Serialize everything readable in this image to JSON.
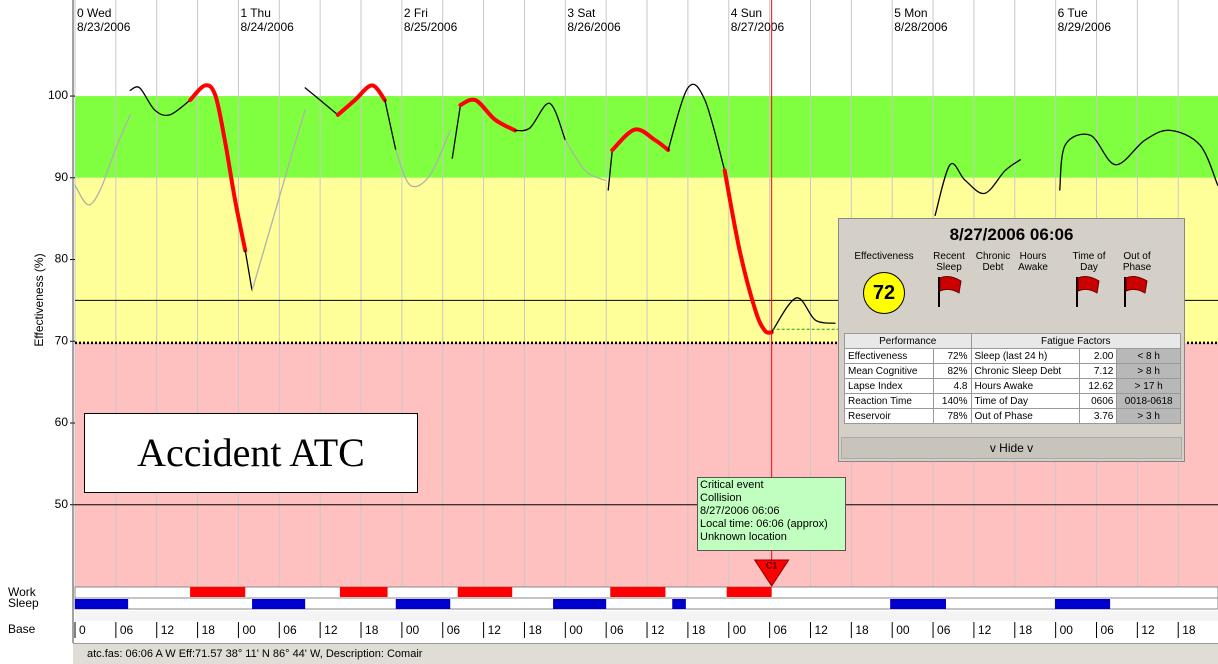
{
  "y_axis_label": "Effectiveness (%)",
  "chart_data": {
    "type": "line",
    "ylim": [
      40,
      111.75
    ],
    "yticks": [
      50,
      60,
      70,
      80,
      90,
      100
    ],
    "xlim": [
      0,
      168
    ],
    "xticks": [
      0,
      {
        "value": 6,
        "label": "06"
      },
      12,
      18,
      {
        "value": 24,
        "label": "00"
      },
      {
        "value": 30,
        "label": "06"
      },
      {
        "value": 36,
        "label": "12"
      },
      {
        "value": 42,
        "label": "18"
      },
      {
        "value": 48,
        "label": "00"
      },
      {
        "value": 54,
        "label": "06"
      },
      {
        "value": 60,
        "label": "12"
      },
      {
        "value": 66,
        "label": "18"
      },
      {
        "value": 72,
        "label": "00"
      },
      {
        "value": 78,
        "label": "06"
      },
      {
        "value": 84,
        "label": "12"
      },
      {
        "value": 90,
        "label": "18"
      },
      {
        "value": 96,
        "label": "00"
      },
      {
        "value": 102,
        "label": "06"
      },
      {
        "value": 108,
        "label": "12"
      },
      {
        "value": 114,
        "label": "18"
      },
      {
        "value": 120,
        "label": "00"
      },
      {
        "value": 126,
        "label": "06"
      },
      {
        "value": 132,
        "label": "12"
      },
      {
        "value": 138,
        "label": "18"
      },
      {
        "value": 144,
        "label": "00"
      },
      {
        "value": 150,
        "label": "06"
      },
      {
        "value": 156,
        "label": "12"
      },
      {
        "value": 162,
        "label": "18"
      }
    ],
    "days": [
      {
        "label": "0 Wed",
        "date": "8/23/2006"
      },
      {
        "label": "1 Thu",
        "date": "8/24/2006"
      },
      {
        "label": "2 Fri",
        "date": "8/25/2006"
      },
      {
        "label": "3 Sat",
        "date": "8/26/2006"
      },
      {
        "label": "4 Sun",
        "date": "8/27/2006"
      },
      {
        "label": "5 Mon",
        "date": "8/28/2006"
      },
      {
        "label": "6 Tue",
        "date": "8/29/2006"
      }
    ],
    "bands": [
      {
        "from": 90,
        "to": 100,
        "color": "#80ff40"
      },
      {
        "from": 69.8,
        "to": 90,
        "color": "#ffff99"
      },
      {
        "from": 40,
        "to": 69.8,
        "color": "#ffc0c0"
      }
    ],
    "reference_lines": [
      75,
      50
    ],
    "criterion": 69.8,
    "series": [
      {
        "color": "#b0b0b0",
        "x": [
          0,
          1.9,
          3.7,
          5.9,
          8.1
        ],
        "values": [
          89.1,
          86.7,
          88.5,
          93.4,
          97.7
        ]
      },
      {
        "color": "#000000",
        "x": [
          8.1,
          9.5,
          11.7,
          13.9,
          16.9
        ],
        "values": [
          100.7,
          101,
          98.3,
          97.7,
          99.5
        ]
      },
      {
        "color": "#ff0000",
        "x": [
          16.9,
          19.1,
          20.6,
          22,
          23.5,
          25
        ],
        "values": [
          99.5,
          101.3,
          100.1,
          94.6,
          87.3,
          81.1
        ]
      },
      {
        "color": "#000000",
        "x": [
          25,
          26
        ],
        "values": [
          81.1,
          76.2
        ]
      },
      {
        "color": "#b0b0b0",
        "x": [
          26,
          28.6,
          31.6,
          33.8
        ],
        "values": [
          76.2,
          83.6,
          92.2,
          98.3
        ]
      },
      {
        "color": "#000000",
        "x": [
          33.8,
          36,
          38.6
        ],
        "values": [
          101,
          99.5,
          97.7
        ]
      },
      {
        "color": "#ff0000",
        "x": [
          38.6,
          41.1,
          43.6,
          45.5
        ],
        "values": [
          97.7,
          99.5,
          101.3,
          99.5
        ]
      },
      {
        "color": "#000000",
        "x": [
          45.5,
          47.1
        ],
        "values": [
          99.5,
          93.4
        ]
      },
      {
        "color": "#b0b0b0",
        "x": [
          47.1,
          49.2,
          52.1,
          55.1
        ],
        "values": [
          93.4,
          89.1,
          90.3,
          95.8
        ]
      },
      {
        "color": "#000000",
        "x": [
          55.4,
          56.6
        ],
        "values": [
          92.4,
          98.9
        ]
      },
      {
        "color": "#ff0000",
        "x": [
          56.6,
          58.8,
          61.7,
          64.6
        ],
        "values": [
          98.9,
          99.5,
          97.1,
          95.8
        ]
      },
      {
        "color": "#000000",
        "x": [
          64.6,
          66.8,
          69.7,
          72
        ],
        "values": [
          95.8,
          96.1,
          99.1,
          94.6
        ]
      },
      {
        "color": "#b0b0b0",
        "x": [
          72,
          74.9,
          77.8
        ],
        "values": [
          94.6,
          90.9,
          89.7
        ]
      },
      {
        "color": "#000000",
        "x": [
          78.3,
          78.9
        ],
        "values": [
          88.5,
          93.4
        ]
      },
      {
        "color": "#ff0000",
        "x": [
          78.9,
          82.2,
          85.2,
          87.1
        ],
        "values": [
          93.4,
          95.9,
          94.6,
          93.4
        ]
      },
      {
        "color": "#000000",
        "x": [
          87.1,
          90,
          92.5,
          95.4
        ],
        "values": [
          93.4,
          101,
          99.5,
          90.9
        ]
      },
      {
        "color": "#ff0000",
        "x": [
          95.4,
          97.6,
          99.9,
          101.3,
          102.3
        ],
        "values": [
          90.9,
          81.1,
          73.8,
          71.3,
          71.1
        ]
      },
      {
        "color": "#000000",
        "x": [
          102.3,
          105.9,
          108.7,
          111.6
        ],
        "values": [
          71.1,
          75.3,
          72.6,
          72.2
        ]
      },
      {
        "color": "#000000",
        "x": [
          126.3,
          128.5,
          130.7,
          133.6,
          136.6,
          138.8
        ],
        "values": [
          85.4,
          91.6,
          89.7,
          88.1,
          90.9,
          92.2
        ]
      },
      {
        "color": "#000000",
        "x": [
          144.6,
          145.4,
          149.1,
          152.8,
          157.1,
          160.8,
          165.2,
          167.8
        ],
        "values": [
          88.5,
          94,
          95.2,
          91.6,
          94.6,
          95.8,
          94,
          89.1
        ]
      }
    ],
    "work_color": "#ff0000",
    "sleep_color": "#0000cc",
    "work_periods": [
      [
        16.9,
        25
      ],
      [
        38.9,
        45.9
      ],
      [
        56.2,
        64.2
      ],
      [
        78.6,
        86.7
      ],
      [
        95.7,
        102.3
      ]
    ],
    "sleep_periods": [
      [
        0,
        7.8
      ],
      [
        26,
        33.8
      ],
      [
        47.1,
        55.1
      ],
      [
        70.2,
        78
      ],
      [
        87.7,
        89.7
      ],
      [
        119.7,
        127.9
      ],
      [
        143.9,
        152
      ]
    ],
    "event": {
      "x": 102.3,
      "label": "C1",
      "color": "#ff0000"
    }
  },
  "annotation": "Accident ATC",
  "tooltip": [
    "Critical event",
    "Collision",
    "8/27/2006 06:06",
    "Local time: 06:06 (approx)",
    "Unknown location"
  ],
  "row_labels": [
    "Work",
    "Sleep",
    "Base"
  ],
  "status": "atc.fas: 06:06 A W Eff:71.57  38° 11' N 86° 44' W, Description: Comair",
  "popup": {
    "title": "8/27/2006 06:06",
    "headers": [
      "Effectiveness",
      "Recent Sleep",
      "Chronic Debt",
      "Hours Awake",
      "Time of Day",
      "Out of Phase"
    ],
    "score": "72",
    "table_headers": [
      "Performance",
      "Fatigue Factors"
    ],
    "rows": [
      [
        "Effectiveness",
        "72%",
        "Sleep (last 24 h)",
        "2.00",
        "< 8 h"
      ],
      [
        "Mean Cognitive",
        "82%",
        "Chronic Sleep Debt",
        "7.12",
        "> 8 h"
      ],
      [
        "Lapse Index",
        "4.8",
        "Hours Awake",
        "12.62",
        "> 17 h"
      ],
      [
        "Reaction Time",
        "140%",
        "Time of Day",
        "0606",
        "0018-0618"
      ],
      [
        "Reservoir",
        "78%",
        "Out of Phase",
        "3.76",
        "> 3 h"
      ]
    ],
    "button": "v Hide v"
  }
}
